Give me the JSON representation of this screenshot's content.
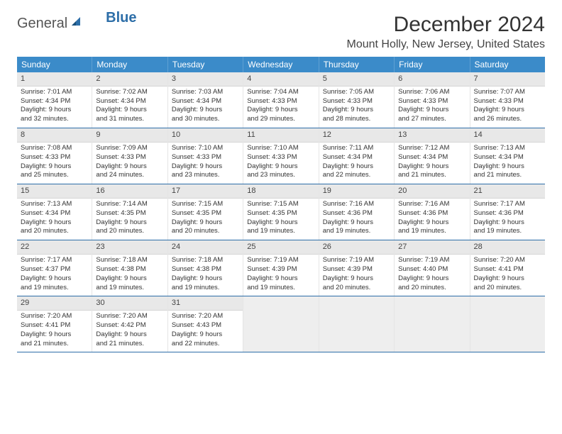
{
  "logo": {
    "part1": "General",
    "part2": "Blue"
  },
  "title": "December 2024",
  "location": "Mount Holly, New Jersey, United States",
  "colors": {
    "header_bg": "#3b8bc9",
    "header_text": "#ffffff",
    "border": "#2d6ea8",
    "date_bg": "#e8e8e8",
    "empty_bg": "#eeeeee"
  },
  "day_names": [
    "Sunday",
    "Monday",
    "Tuesday",
    "Wednesday",
    "Thursday",
    "Friday",
    "Saturday"
  ],
  "weeks": [
    [
      {
        "date": "1",
        "sunrise": "Sunrise: 7:01 AM",
        "sunset": "Sunset: 4:34 PM",
        "daylight1": "Daylight: 9 hours",
        "daylight2": "and 32 minutes."
      },
      {
        "date": "2",
        "sunrise": "Sunrise: 7:02 AM",
        "sunset": "Sunset: 4:34 PM",
        "daylight1": "Daylight: 9 hours",
        "daylight2": "and 31 minutes."
      },
      {
        "date": "3",
        "sunrise": "Sunrise: 7:03 AM",
        "sunset": "Sunset: 4:34 PM",
        "daylight1": "Daylight: 9 hours",
        "daylight2": "and 30 minutes."
      },
      {
        "date": "4",
        "sunrise": "Sunrise: 7:04 AM",
        "sunset": "Sunset: 4:33 PM",
        "daylight1": "Daylight: 9 hours",
        "daylight2": "and 29 minutes."
      },
      {
        "date": "5",
        "sunrise": "Sunrise: 7:05 AM",
        "sunset": "Sunset: 4:33 PM",
        "daylight1": "Daylight: 9 hours",
        "daylight2": "and 28 minutes."
      },
      {
        "date": "6",
        "sunrise": "Sunrise: 7:06 AM",
        "sunset": "Sunset: 4:33 PM",
        "daylight1": "Daylight: 9 hours",
        "daylight2": "and 27 minutes."
      },
      {
        "date": "7",
        "sunrise": "Sunrise: 7:07 AM",
        "sunset": "Sunset: 4:33 PM",
        "daylight1": "Daylight: 9 hours",
        "daylight2": "and 26 minutes."
      }
    ],
    [
      {
        "date": "8",
        "sunrise": "Sunrise: 7:08 AM",
        "sunset": "Sunset: 4:33 PM",
        "daylight1": "Daylight: 9 hours",
        "daylight2": "and 25 minutes."
      },
      {
        "date": "9",
        "sunrise": "Sunrise: 7:09 AM",
        "sunset": "Sunset: 4:33 PM",
        "daylight1": "Daylight: 9 hours",
        "daylight2": "and 24 minutes."
      },
      {
        "date": "10",
        "sunrise": "Sunrise: 7:10 AM",
        "sunset": "Sunset: 4:33 PM",
        "daylight1": "Daylight: 9 hours",
        "daylight2": "and 23 minutes."
      },
      {
        "date": "11",
        "sunrise": "Sunrise: 7:10 AM",
        "sunset": "Sunset: 4:33 PM",
        "daylight1": "Daylight: 9 hours",
        "daylight2": "and 23 minutes."
      },
      {
        "date": "12",
        "sunrise": "Sunrise: 7:11 AM",
        "sunset": "Sunset: 4:34 PM",
        "daylight1": "Daylight: 9 hours",
        "daylight2": "and 22 minutes."
      },
      {
        "date": "13",
        "sunrise": "Sunrise: 7:12 AM",
        "sunset": "Sunset: 4:34 PM",
        "daylight1": "Daylight: 9 hours",
        "daylight2": "and 21 minutes."
      },
      {
        "date": "14",
        "sunrise": "Sunrise: 7:13 AM",
        "sunset": "Sunset: 4:34 PM",
        "daylight1": "Daylight: 9 hours",
        "daylight2": "and 21 minutes."
      }
    ],
    [
      {
        "date": "15",
        "sunrise": "Sunrise: 7:13 AM",
        "sunset": "Sunset: 4:34 PM",
        "daylight1": "Daylight: 9 hours",
        "daylight2": "and 20 minutes."
      },
      {
        "date": "16",
        "sunrise": "Sunrise: 7:14 AM",
        "sunset": "Sunset: 4:35 PM",
        "daylight1": "Daylight: 9 hours",
        "daylight2": "and 20 minutes."
      },
      {
        "date": "17",
        "sunrise": "Sunrise: 7:15 AM",
        "sunset": "Sunset: 4:35 PM",
        "daylight1": "Daylight: 9 hours",
        "daylight2": "and 20 minutes."
      },
      {
        "date": "18",
        "sunrise": "Sunrise: 7:15 AM",
        "sunset": "Sunset: 4:35 PM",
        "daylight1": "Daylight: 9 hours",
        "daylight2": "and 19 minutes."
      },
      {
        "date": "19",
        "sunrise": "Sunrise: 7:16 AM",
        "sunset": "Sunset: 4:36 PM",
        "daylight1": "Daylight: 9 hours",
        "daylight2": "and 19 minutes."
      },
      {
        "date": "20",
        "sunrise": "Sunrise: 7:16 AM",
        "sunset": "Sunset: 4:36 PM",
        "daylight1": "Daylight: 9 hours",
        "daylight2": "and 19 minutes."
      },
      {
        "date": "21",
        "sunrise": "Sunrise: 7:17 AM",
        "sunset": "Sunset: 4:36 PM",
        "daylight1": "Daylight: 9 hours",
        "daylight2": "and 19 minutes."
      }
    ],
    [
      {
        "date": "22",
        "sunrise": "Sunrise: 7:17 AM",
        "sunset": "Sunset: 4:37 PM",
        "daylight1": "Daylight: 9 hours",
        "daylight2": "and 19 minutes."
      },
      {
        "date": "23",
        "sunrise": "Sunrise: 7:18 AM",
        "sunset": "Sunset: 4:38 PM",
        "daylight1": "Daylight: 9 hours",
        "daylight2": "and 19 minutes."
      },
      {
        "date": "24",
        "sunrise": "Sunrise: 7:18 AM",
        "sunset": "Sunset: 4:38 PM",
        "daylight1": "Daylight: 9 hours",
        "daylight2": "and 19 minutes."
      },
      {
        "date": "25",
        "sunrise": "Sunrise: 7:19 AM",
        "sunset": "Sunset: 4:39 PM",
        "daylight1": "Daylight: 9 hours",
        "daylight2": "and 19 minutes."
      },
      {
        "date": "26",
        "sunrise": "Sunrise: 7:19 AM",
        "sunset": "Sunset: 4:39 PM",
        "daylight1": "Daylight: 9 hours",
        "daylight2": "and 20 minutes."
      },
      {
        "date": "27",
        "sunrise": "Sunrise: 7:19 AM",
        "sunset": "Sunset: 4:40 PM",
        "daylight1": "Daylight: 9 hours",
        "daylight2": "and 20 minutes."
      },
      {
        "date": "28",
        "sunrise": "Sunrise: 7:20 AM",
        "sunset": "Sunset: 4:41 PM",
        "daylight1": "Daylight: 9 hours",
        "daylight2": "and 20 minutes."
      }
    ],
    [
      {
        "date": "29",
        "sunrise": "Sunrise: 7:20 AM",
        "sunset": "Sunset: 4:41 PM",
        "daylight1": "Daylight: 9 hours",
        "daylight2": "and 21 minutes."
      },
      {
        "date": "30",
        "sunrise": "Sunrise: 7:20 AM",
        "sunset": "Sunset: 4:42 PM",
        "daylight1": "Daylight: 9 hours",
        "daylight2": "and 21 minutes."
      },
      {
        "date": "31",
        "sunrise": "Sunrise: 7:20 AM",
        "sunset": "Sunset: 4:43 PM",
        "daylight1": "Daylight: 9 hours",
        "daylight2": "and 22 minutes."
      },
      {
        "empty": true
      },
      {
        "empty": true
      },
      {
        "empty": true
      },
      {
        "empty": true
      }
    ]
  ]
}
